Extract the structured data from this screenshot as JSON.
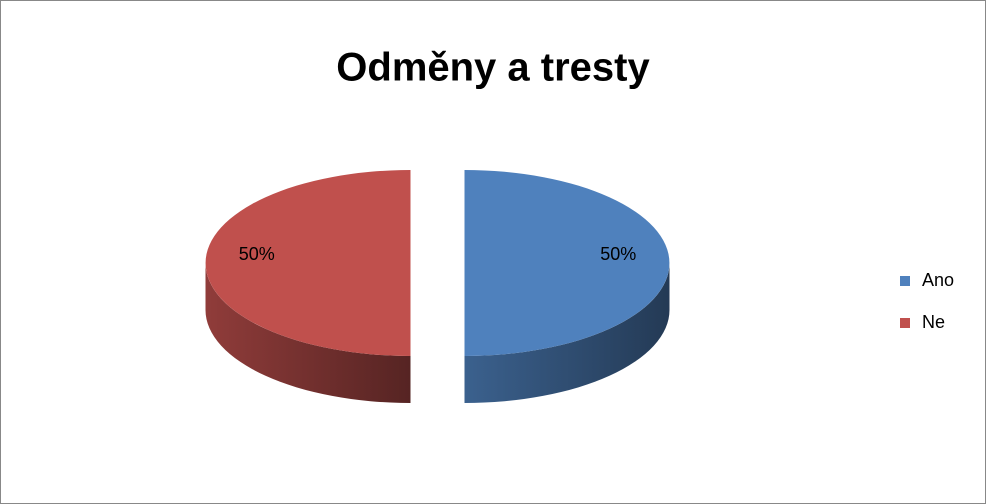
{
  "chart_data": {
    "type": "pie",
    "title": "Odměny a tresty",
    "categories": [
      "Ano",
      "Ne"
    ],
    "values": [
      50,
      50
    ],
    "value_labels": [
      "50%",
      "50%"
    ],
    "colors": [
      "#4f81bd",
      "#c0504d"
    ],
    "legend": "right"
  }
}
